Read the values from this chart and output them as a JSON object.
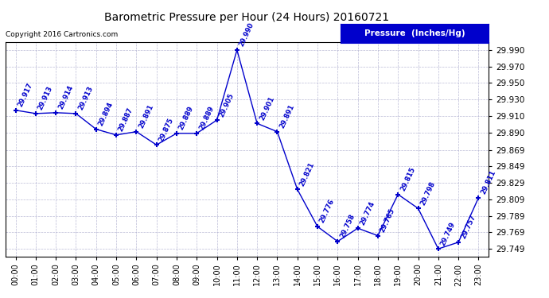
{
  "title": "Barometric Pressure per Hour (24 Hours) 20160721",
  "copyright": "Copyright 2016 Cartronics.com",
  "legend_label": "Pressure  (Inches/Hg)",
  "hours": [
    0,
    1,
    2,
    3,
    4,
    5,
    6,
    7,
    8,
    9,
    10,
    11,
    12,
    13,
    14,
    15,
    16,
    17,
    18,
    19,
    20,
    21,
    22,
    23
  ],
  "pressure": [
    29.917,
    29.913,
    29.914,
    29.913,
    29.894,
    29.887,
    29.891,
    29.875,
    29.889,
    29.889,
    29.905,
    29.99,
    29.901,
    29.891,
    29.821,
    29.776,
    29.758,
    29.774,
    29.765,
    29.815,
    29.798,
    29.749,
    29.757,
    29.811
  ],
  "x_labels": [
    "00:00",
    "01:00",
    "02:00",
    "03:00",
    "04:00",
    "05:00",
    "06:00",
    "07:00",
    "08:00",
    "09:00",
    "10:00",
    "11:00",
    "12:00",
    "13:00",
    "14:00",
    "15:00",
    "16:00",
    "17:00",
    "18:00",
    "19:00",
    "20:00",
    "21:00",
    "22:00",
    "23:00"
  ],
  "ylim_min": 29.74,
  "ylim_max": 30.0,
  "yticks": [
    29.749,
    29.769,
    29.789,
    29.809,
    29.829,
    29.849,
    29.869,
    29.89,
    29.91,
    29.93,
    29.95,
    29.97,
    29.99
  ],
  "line_color": "#0000cc",
  "marker_color": "#0000cc",
  "bg_color": "#ffffff",
  "grid_color": "#aaaacc",
  "title_color": "#000000",
  "label_color": "#0000cc",
  "legend_bg": "#0000cc",
  "legend_text_color": "#ffffff"
}
